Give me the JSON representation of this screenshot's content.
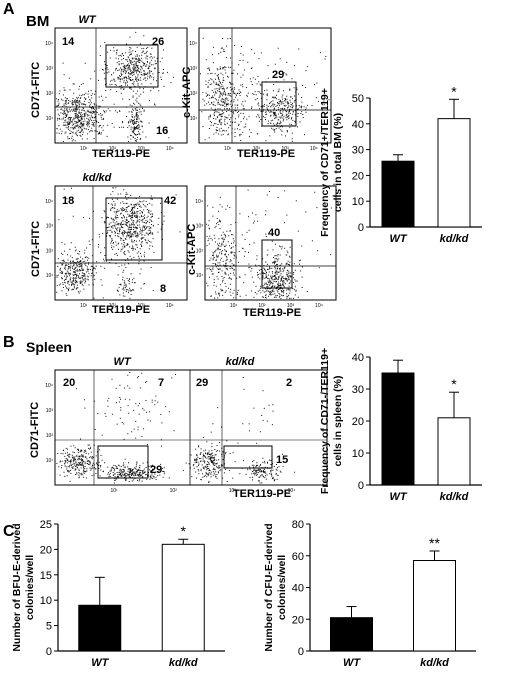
{
  "panels": {
    "A": {
      "letter": "A",
      "title": "BM"
    },
    "B": {
      "letter": "B",
      "title": "Spleen"
    },
    "C": {
      "letter": "C"
    }
  },
  "flow": {
    "bm_wt_1": {
      "genotype": "WT",
      "ylabel": "CD71-FITC",
      "xlabel": "TER119-PE",
      "q1": "14",
      "q2": "26",
      "q3": "16"
    },
    "bm_wt_2": {
      "ylabel": "c-Kit-APC",
      "xlabel": "TER119-PE",
      "q": "29"
    },
    "bm_kd_1": {
      "genotype": "kd/kd",
      "ylabel": "CD71-FITC",
      "xlabel": "TER119-PE",
      "q1": "18",
      "q2": "42",
      "q3": "8"
    },
    "bm_kd_2": {
      "ylabel": "c-Kit-APC",
      "xlabel": "TER119-PE",
      "q": "40"
    },
    "spleen": {
      "ylabel": "CD71-FITC",
      "xlabel": "TER119-PE",
      "wt": {
        "genotype": "WT",
        "q1": "20",
        "q2": "7",
        "q3": "29"
      },
      "kd": {
        "genotype": "kd/kd",
        "q1": "29",
        "q2": "2",
        "q3": "15"
      }
    }
  },
  "axis_ticks": [
    "10¹",
    "10²",
    "10³",
    "10⁴"
  ],
  "chart_data": [
    {
      "id": "A",
      "type": "bar",
      "categories": [
        "WT",
        "kd/kd"
      ],
      "values": [
        25.5,
        42
      ],
      "errors": [
        2.5,
        7.5
      ],
      "colors": [
        "#000000",
        "#ffffff"
      ],
      "significance": [
        "",
        "*"
      ],
      "ylabel": "Frequency of CD71+/TER119+ cells in total BM (%)",
      "ylabel_lines": [
        "Frequency of CD71+/TER119+",
        "cells in total BM (%)"
      ],
      "ylim": [
        0,
        50
      ],
      "yticks": [
        0,
        10,
        20,
        30,
        40,
        50
      ]
    },
    {
      "id": "B",
      "type": "bar",
      "categories": [
        "WT",
        "kd/kd"
      ],
      "values": [
        35,
        21
      ],
      "errors": [
        4,
        8
      ],
      "colors": [
        "#000000",
        "#ffffff"
      ],
      "significance": [
        "",
        "*"
      ],
      "ylabel": "Frequency of CD71-/TER119+ cells in spleen (%)",
      "ylabel_lines": [
        "Frequency of CD71-/TER119+",
        "cells in spleen (%)"
      ],
      "ylim": [
        0,
        40
      ],
      "yticks": [
        0,
        10,
        20,
        30,
        40
      ]
    },
    {
      "id": "C1",
      "type": "bar",
      "categories": [
        "WT",
        "kd/kd"
      ],
      "values": [
        9,
        21
      ],
      "errors": [
        5.5,
        1
      ],
      "colors": [
        "#000000",
        "#ffffff"
      ],
      "significance": [
        "",
        "*"
      ],
      "ylabel": "Number of BFU-E-derived colonies/well",
      "ylabel_lines": [
        "Number of BFU-E-derived",
        "colonies/well"
      ],
      "ylim": [
        0,
        25
      ],
      "yticks": [
        0,
        5,
        10,
        15,
        20,
        25
      ]
    },
    {
      "id": "C2",
      "type": "bar",
      "categories": [
        "WT",
        "kd/kd"
      ],
      "values": [
        21,
        57
      ],
      "errors": [
        7,
        6
      ],
      "colors": [
        "#000000",
        "#ffffff"
      ],
      "significance": [
        "",
        "**"
      ],
      "ylabel": "Number of CFU-E-derived colonies/well",
      "ylabel_lines": [
        "Number of CFU-E-derived",
        "colonies/well"
      ],
      "ylim": [
        0,
        80
      ],
      "yticks": [
        0,
        20,
        40,
        60,
        80
      ]
    }
  ]
}
